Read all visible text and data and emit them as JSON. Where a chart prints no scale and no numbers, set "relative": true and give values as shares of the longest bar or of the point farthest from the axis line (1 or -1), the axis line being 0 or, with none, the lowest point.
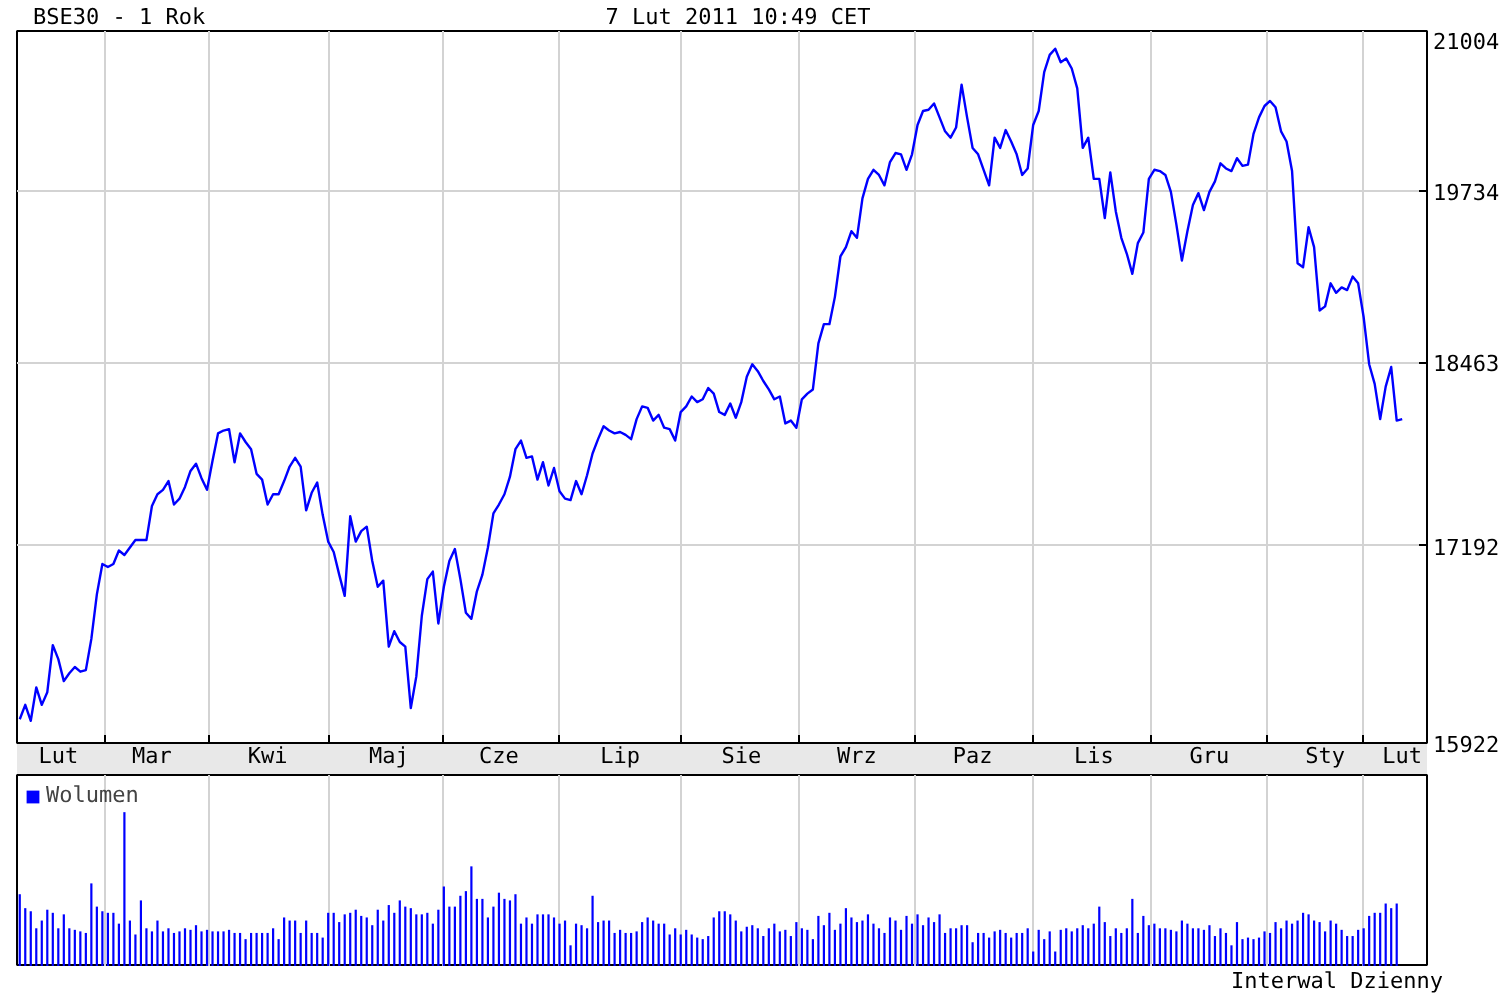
{
  "chart_data": [
    {
      "type": "line",
      "title": "BSE30 - 1 Rok",
      "subtitle": "7 Lut 2011 10:49 CET",
      "categories": [
        null,
        null,
        null,
        null,
        null,
        null,
        null,
        "Lut",
        null,
        null,
        null,
        null,
        null,
        null,
        null,
        null,
        null,
        null,
        null,
        null,
        null,
        null,
        null,
        null,
        "Mar",
        null,
        null,
        null,
        null,
        null,
        null,
        null,
        null,
        null,
        null,
        null,
        null,
        null,
        null,
        null,
        null,
        null,
        null,
        null,
        null,
        "Kwi",
        null,
        null,
        null,
        null,
        null,
        null,
        null,
        null,
        null,
        null,
        null,
        null,
        null,
        null,
        null,
        null,
        null,
        null,
        null,
        null,
        null,
        "Maj",
        null,
        null,
        null,
        null,
        null,
        null,
        null,
        null,
        null,
        null,
        null,
        null,
        null,
        null,
        null,
        null,
        null,
        null,
        null,
        "Cze",
        null,
        null,
        null,
        null,
        null,
        null,
        null,
        null,
        null,
        null,
        null,
        null,
        null,
        null,
        null,
        null,
        null,
        null,
        null,
        null,
        null,
        "Lip",
        null,
        null,
        null,
        null,
        null,
        null,
        null,
        null,
        null,
        null,
        null,
        null,
        null,
        null,
        null,
        null,
        null,
        null,
        null,
        null,
        null,
        "Sie",
        null,
        null,
        null,
        null,
        null,
        null,
        null,
        null,
        null,
        null,
        null,
        null,
        null,
        null,
        null,
        null,
        null,
        null,
        null,
        null,
        "Wrz",
        null,
        null,
        null,
        null,
        null,
        null,
        null,
        null,
        null,
        null,
        null,
        null,
        null,
        null,
        null,
        null,
        null,
        null,
        null,
        null,
        "Paz",
        null,
        null,
        null,
        null,
        null,
        null,
        null,
        null,
        null,
        null,
        null,
        null,
        null,
        null,
        null,
        null,
        null,
        null,
        null,
        null,
        null,
        "Lis",
        null,
        null,
        null,
        null,
        null,
        null,
        null,
        null,
        null,
        null,
        null,
        null,
        null,
        null,
        null,
        null,
        null,
        null,
        null,
        null,
        "Gru",
        null,
        null,
        null,
        null,
        null,
        null,
        null,
        null,
        null,
        null,
        null,
        null,
        null,
        null,
        null,
        null,
        null,
        null,
        null,
        null,
        "Sty",
        null,
        null,
        null,
        null,
        null,
        null,
        null,
        null,
        null,
        null,
        null,
        null,
        null,
        "Lut",
        null,
        null,
        null,
        null
      ],
      "values": [
        16070,
        16160,
        16060,
        16270,
        16160,
        16240,
        16540,
        16450,
        16310,
        16360,
        16400,
        16370,
        16380,
        16580,
        16870,
        17070,
        17050,
        17070,
        17160,
        17130,
        17180,
        17230,
        17230,
        17230,
        17460,
        17540,
        17570,
        17630,
        17470,
        17510,
        17590,
        17700,
        17750,
        17650,
        17570,
        17770,
        17960,
        17980,
        17990,
        17760,
        17960,
        17900,
        17850,
        17680,
        17640,
        17470,
        17540,
        17540,
        17630,
        17730,
        17790,
        17730,
        17430,
        17550,
        17620,
        17400,
        17220,
        17150,
        17000,
        16860,
        17390,
        17220,
        17290,
        17320,
        17090,
        16920,
        16960,
        16530,
        16630,
        16560,
        16530,
        16140,
        16340,
        16730,
        16970,
        17020,
        16680,
        16920,
        17090,
        17170,
        16970,
        16750,
        16710,
        16890,
        17000,
        17180,
        17410,
        17470,
        17540,
        17660,
        17850,
        17910,
        17790,
        17800,
        17640,
        17760,
        17600,
        17720,
        17560,
        17510,
        17500,
        17630,
        17540,
        17670,
        17820,
        17920,
        18010,
        17980,
        17960,
        17970,
        17950,
        17920,
        18060,
        18150,
        18140,
        18050,
        18090,
        18000,
        17990,
        17910,
        18110,
        18150,
        18220,
        18180,
        18200,
        18280,
        18240,
        18110,
        18090,
        18170,
        18070,
        18180,
        18360,
        18450,
        18400,
        18330,
        18270,
        18200,
        18220,
        18030,
        18050,
        18000,
        18200,
        18240,
        18270,
        18600,
        18740,
        18740,
        18940,
        19240,
        19310,
        19430,
        19380,
        19680,
        19830,
        19900,
        19860,
        19780,
        19960,
        20030,
        20020,
        19900,
        20020,
        20250,
        20360,
        20370,
        20420,
        20310,
        20200,
        20150,
        20230,
        20570,
        20310,
        20070,
        20020,
        19900,
        19780,
        20150,
        20070,
        20210,
        20120,
        20020,
        19860,
        19910,
        20250,
        20360,
        20670,
        20810,
        20860,
        20750,
        20780,
        20700,
        20540,
        20070,
        20150,
        19830,
        19830,
        19530,
        19880,
        19580,
        19380,
        19260,
        19110,
        19340,
        19420,
        19830,
        19900,
        19890,
        19860,
        19730,
        19480,
        19210,
        19430,
        19630,
        19720,
        19590,
        19730,
        19810,
        19950,
        19910,
        19890,
        19990,
        19930,
        19940,
        20180,
        20310,
        20400,
        20440,
        20390,
        20200,
        20120,
        19890,
        19190,
        19160,
        19460,
        19310,
        18840,
        18870,
        19040,
        18970,
        19010,
        18990,
        19090,
        19040,
        18790,
        18450,
        18310,
        18060,
        18290,
        18430,
        18050,
        18060,
        null,
        null,
        null,
        null
      ],
      "color": "#0000ff",
      "ylim": [
        15922,
        21004
      ],
      "yticks": [
        15922,
        17192,
        18463,
        19734,
        21004
      ],
      "log": true,
      "grid": true
    },
    {
      "type": "bar",
      "relative": true,
      "tick_labels": false,
      "grid": "x",
      "legend": "top left",
      "annotations": [
        "Interwal Dzienny"
      ],
      "categories": [
        null,
        null,
        null,
        null,
        null,
        null,
        null,
        null,
        null,
        null,
        null,
        null,
        null,
        null,
        null,
        null,
        null,
        null,
        null,
        null,
        null,
        null,
        null,
        null,
        null,
        null,
        null,
        null,
        null,
        null,
        null,
        null,
        null,
        null,
        null,
        null,
        null,
        null,
        null,
        null,
        null,
        null,
        null,
        null,
        null,
        null,
        null,
        null,
        null,
        null,
        null,
        null,
        null,
        null,
        null,
        null,
        null,
        null,
        null,
        null,
        null,
        null,
        null,
        null,
        null,
        null,
        null,
        null,
        null,
        null,
        null,
        null,
        null,
        null,
        null,
        null,
        null,
        null,
        null,
        null,
        null,
        null,
        null,
        null,
        null,
        null,
        null,
        null,
        null,
        null,
        null,
        null,
        null,
        null,
        null,
        null,
        null,
        null,
        null,
        null,
        null,
        null,
        null,
        null,
        null,
        null,
        null,
        null,
        null,
        null,
        null,
        null,
        null,
        null,
        null,
        null,
        null,
        null,
        null,
        null,
        null,
        null,
        null,
        null,
        null,
        null,
        null,
        null,
        null,
        null,
        null,
        null,
        null,
        null,
        null,
        null,
        null,
        null,
        null,
        null,
        null,
        null,
        null,
        null,
        null,
        null,
        null,
        null,
        null,
        null,
        null,
        null,
        null,
        null,
        null,
        null,
        null,
        null,
        null,
        null,
        null,
        null,
        null,
        null,
        null,
        null,
        null,
        null,
        null,
        null,
        null,
        null,
        null,
        null,
        null,
        null,
        null,
        null,
        null,
        null,
        null,
        null,
        null,
        null,
        null,
        null,
        null,
        null,
        null,
        null,
        null,
        null,
        null,
        null,
        null,
        null,
        null,
        null,
        null,
        null,
        null,
        null,
        null,
        null,
        null,
        null,
        null,
        null,
        null,
        null,
        null,
        null,
        null,
        null,
        null,
        null,
        null,
        null,
        null,
        null,
        null,
        null,
        null,
        null,
        null,
        null,
        null,
        null,
        null,
        null,
        null,
        null,
        null,
        null,
        null,
        null,
        null,
        null,
        null,
        null,
        null,
        null,
        null,
        null,
        null,
        null,
        null,
        null,
        null,
        null,
        null,
        null,
        null,
        null,
        null,
        null
      ],
      "series": [
        {
          "name": "Wolumen",
          "color": "#0000ff",
          "values": [
            0.47,
            0.38,
            0.36,
            0.25,
            0.3,
            0.37,
            0.35,
            0.25,
            0.34,
            0.25,
            0.24,
            0.23,
            0.22,
            0.54,
            0.39,
            0.36,
            0.35,
            0.35,
            0.28,
            1.0,
            0.3,
            0.21,
            0.43,
            0.25,
            0.23,
            0.3,
            0.23,
            0.25,
            0.22,
            0.23,
            0.25,
            0.24,
            0.27,
            0.23,
            0.24,
            0.23,
            0.23,
            0.23,
            0.24,
            0.22,
            0.22,
            0.18,
            0.22,
            0.22,
            0.22,
            0.22,
            0.25,
            0.18,
            0.32,
            0.3,
            0.3,
            0.22,
            0.3,
            0.22,
            0.22,
            0.19,
            0.35,
            0.35,
            0.29,
            0.34,
            0.35,
            0.37,
            0.33,
            0.32,
            0.27,
            0.37,
            0.3,
            0.4,
            0.35,
            0.43,
            0.39,
            0.38,
            0.34,
            0.34,
            0.35,
            0.28,
            0.37,
            0.52,
            0.39,
            0.39,
            0.46,
            0.49,
            0.65,
            0.44,
            0.44,
            0.32,
            0.39,
            0.48,
            0.44,
            0.43,
            0.47,
            0.28,
            0.32,
            0.28,
            0.34,
            0.34,
            0.34,
            0.32,
            0.28,
            0.3,
            0.14,
            0.28,
            0.27,
            0.25,
            0.46,
            0.29,
            0.3,
            0.3,
            0.22,
            0.24,
            0.22,
            0.22,
            0.23,
            0.29,
            0.32,
            0.3,
            0.28,
            0.28,
            0.21,
            0.25,
            0.21,
            0.24,
            0.21,
            0.19,
            0.18,
            0.2,
            0.32,
            0.36,
            0.36,
            0.34,
            0.3,
            0.23,
            0.26,
            0.27,
            0.25,
            0.2,
            0.25,
            0.28,
            0.23,
            0.24,
            0.2,
            0.29,
            0.25,
            0.24,
            0.18,
            0.33,
            0.27,
            0.35,
            0.24,
            0.28,
            0.38,
            0.32,
            0.29,
            0.3,
            0.34,
            0.28,
            0.25,
            0.22,
            0.32,
            0.3,
            0.24,
            0.33,
            0.28,
            0.34,
            0.27,
            0.32,
            0.29,
            0.34,
            0.22,
            0.25,
            0.25,
            0.27,
            0.27,
            0.16,
            0.22,
            0.22,
            0.19,
            0.23,
            0.24,
            0.22,
            0.19,
            0.22,
            0.22,
            0.25,
            0.1,
            0.24,
            0.18,
            0.23,
            0.1,
            0.24,
            0.25,
            0.23,
            0.25,
            0.27,
            0.25,
            0.28,
            0.39,
            0.29,
            0.2,
            0.25,
            0.22,
            0.25,
            0.44,
            0.22,
            0.33,
            0.27,
            0.28,
            0.25,
            0.25,
            0.24,
            0.23,
            0.3,
            0.28,
            0.25,
            0.25,
            0.24,
            0.27,
            0.2,
            0.25,
            0.22,
            0.14,
            0.29,
            0.18,
            0.19,
            0.18,
            0.19,
            0.23,
            0.22,
            0.29,
            0.25,
            0.3,
            0.28,
            0.3,
            0.35,
            0.34,
            0.3,
            0.29,
            0.23,
            0.3,
            0.28,
            0.24,
            0.2,
            0.2,
            0.24,
            0.25,
            0.33,
            0.35,
            0.35,
            0.41,
            0.38,
            0.41,
            null,
            null,
            null,
            null,
            null
          ]
        }
      ]
    }
  ]
}
